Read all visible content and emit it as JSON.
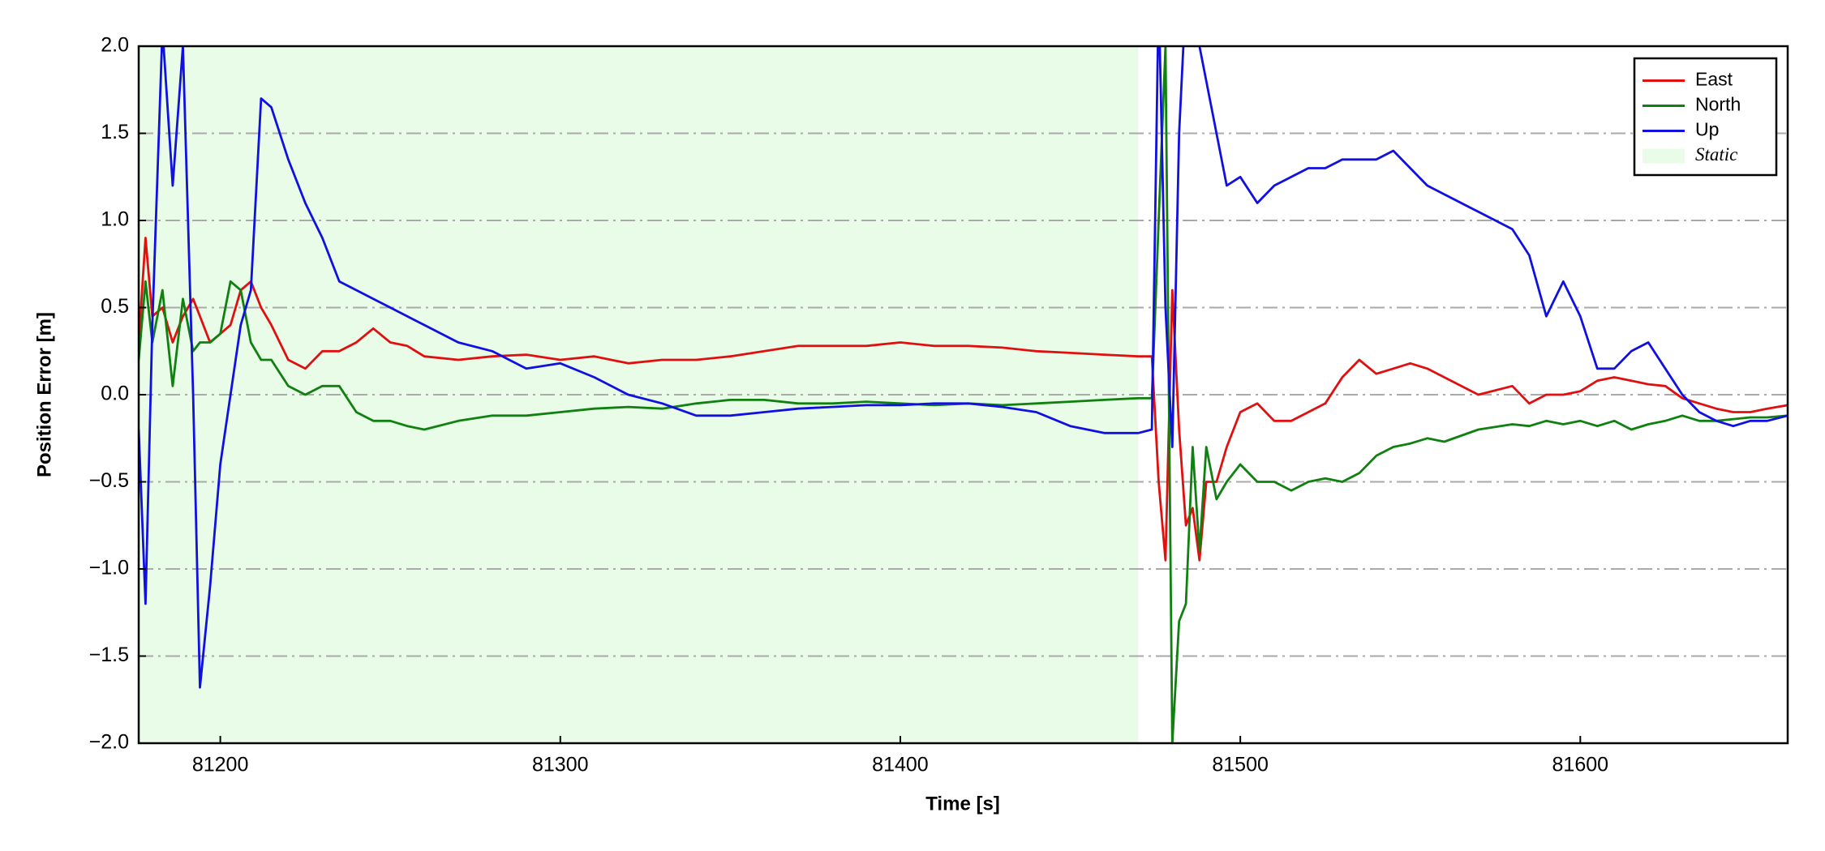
{
  "chart_data": {
    "type": "line",
    "xlabel": "Time [s]",
    "ylabel": "Position Error [m]",
    "x": [
      81176,
      81178,
      81180,
      81183,
      81186,
      81189,
      81192,
      81194,
      81197,
      81200,
      81203,
      81206,
      81209,
      81212,
      81215,
      81220,
      81225,
      81230,
      81235,
      81240,
      81245,
      81250,
      81255,
      81260,
      81270,
      81280,
      81290,
      81300,
      81310,
      81320,
      81330,
      81340,
      81350,
      81360,
      81370,
      81380,
      81390,
      81400,
      81410,
      81420,
      81430,
      81440,
      81450,
      81460,
      81470,
      81474,
      81476,
      81478,
      81480,
      81482,
      81484,
      81486,
      81488,
      81490,
      81493,
      81496,
      81500,
      81505,
      81510,
      81515,
      81520,
      81525,
      81530,
      81535,
      81540,
      81545,
      81550,
      81555,
      81560,
      81570,
      81580,
      81585,
      81590,
      81595,
      81600,
      81605,
      81610,
      81615,
      81620,
      81625,
      81630,
      81635,
      81640,
      81645,
      81650,
      81655,
      81661
    ],
    "series": [
      {
        "name": "East",
        "color": "#e01010",
        "values": [
          0.3,
          0.9,
          0.45,
          0.5,
          0.3,
          0.45,
          0.55,
          0.45,
          0.3,
          0.35,
          0.4,
          0.6,
          0.65,
          0.5,
          0.4,
          0.2,
          0.15,
          0.25,
          0.25,
          0.3,
          0.38,
          0.3,
          0.28,
          0.22,
          0.2,
          0.22,
          0.23,
          0.2,
          0.22,
          0.18,
          0.2,
          0.2,
          0.22,
          0.25,
          0.28,
          0.28,
          0.28,
          0.3,
          0.28,
          0.28,
          0.27,
          0.25,
          0.24,
          0.23,
          0.22,
          0.22,
          -0.5,
          -0.95,
          0.6,
          -0.2,
          -0.75,
          -0.65,
          -0.95,
          -0.5,
          -0.5,
          -0.3,
          -0.1,
          -0.05,
          -0.15,
          -0.15,
          -0.1,
          -0.05,
          0.1,
          0.2,
          0.12,
          0.15,
          0.18,
          0.15,
          0.1,
          0.0,
          0.05,
          -0.05,
          0.0,
          0.0,
          0.02,
          0.08,
          0.1,
          0.08,
          0.06,
          0.05,
          -0.02,
          -0.05,
          -0.08,
          -0.1,
          -0.1,
          -0.08,
          -0.06
        ]
      },
      {
        "name": "North",
        "color": "#108010",
        "values": [
          0.2,
          0.65,
          0.3,
          0.6,
          0.05,
          0.55,
          0.25,
          0.3,
          0.3,
          0.35,
          0.65,
          0.6,
          0.3,
          0.2,
          0.2,
          0.05,
          0.0,
          0.05,
          0.05,
          -0.1,
          -0.15,
          -0.15,
          -0.18,
          -0.2,
          -0.15,
          -0.12,
          -0.12,
          -0.1,
          -0.08,
          -0.07,
          -0.08,
          -0.05,
          -0.03,
          -0.03,
          -0.05,
          -0.05,
          -0.04,
          -0.05,
          -0.06,
          -0.05,
          -0.06,
          -0.05,
          -0.04,
          -0.03,
          -0.02,
          -0.02,
          1.0,
          2.0,
          -2.0,
          -1.3,
          -1.2,
          -0.3,
          -0.9,
          -0.3,
          -0.6,
          -0.5,
          -0.4,
          -0.5,
          -0.5,
          -0.55,
          -0.5,
          -0.48,
          -0.5,
          -0.45,
          -0.35,
          -0.3,
          -0.28,
          -0.25,
          -0.27,
          -0.2,
          -0.17,
          -0.18,
          -0.15,
          -0.17,
          -0.15,
          -0.18,
          -0.15,
          -0.2,
          -0.17,
          -0.15,
          -0.12,
          -0.15,
          -0.15,
          -0.14,
          -0.13,
          -0.13,
          -0.12
        ]
      },
      {
        "name": "Up",
        "color": "#1010e0",
        "values": [
          -0.2,
          -1.2,
          0.4,
          2.1,
          1.2,
          2.0,
          0.0,
          -1.68,
          -1.1,
          -0.4,
          0.0,
          0.4,
          0.6,
          1.7,
          1.65,
          1.35,
          1.1,
          0.9,
          0.65,
          0.6,
          0.55,
          0.5,
          0.45,
          0.4,
          0.3,
          0.25,
          0.15,
          0.18,
          0.1,
          0.0,
          -0.05,
          -0.12,
          -0.12,
          -0.1,
          -0.08,
          -0.07,
          -0.06,
          -0.06,
          -0.05,
          -0.05,
          -0.07,
          -0.1,
          -0.18,
          -0.22,
          -0.22,
          -0.2,
          2.3,
          0.5,
          -0.3,
          1.5,
          2.3,
          2.3,
          2.0,
          1.8,
          1.5,
          1.2,
          1.25,
          1.1,
          1.2,
          1.25,
          1.3,
          1.3,
          1.35,
          1.35,
          1.35,
          1.4,
          1.3,
          1.2,
          1.15,
          1.05,
          0.95,
          0.8,
          0.45,
          0.65,
          0.45,
          0.15,
          0.15,
          0.25,
          0.3,
          0.15,
          0.0,
          -0.1,
          -0.15,
          -0.18,
          -0.15,
          -0.15,
          -0.12
        ]
      }
    ],
    "spans": [
      {
        "name": "Static",
        "color": "#e8fce8",
        "x0": 81176,
        "x1": 81470
      }
    ],
    "xlim": [
      81176,
      81661
    ],
    "ylim": [
      -2,
      2
    ],
    "xticks": [
      81200,
      81300,
      81400,
      81500,
      81600
    ],
    "yticks": [
      {
        "value": -2,
        "label": "−2.0"
      },
      {
        "value": -1.5,
        "label": "−1.5"
      },
      {
        "value": -1,
        "label": "−1.0"
      },
      {
        "value": -0.5,
        "label": "−0.5"
      },
      {
        "value": 0,
        "label": "0.0"
      },
      {
        "value": 0.5,
        "label": "0.5"
      },
      {
        "value": 1,
        "label": "1.0"
      },
      {
        "value": 1.5,
        "label": "1.5"
      },
      {
        "value": 2,
        "label": "2.0"
      }
    ],
    "grid": "y",
    "legend": "upper right"
  }
}
